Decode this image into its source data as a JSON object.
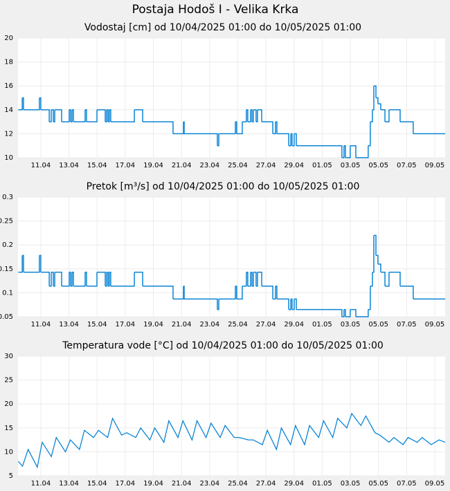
{
  "title": "Postaja Hodoš I - Velika Krka",
  "chart_data": [
    {
      "type": "line",
      "step": true,
      "title": "Vodostaj [cm] od 10/04/2025 01:00 do 10/05/2025 01:00",
      "grid": true,
      "x": [
        99.4,
        99.68,
        99.77,
        100.9,
        101.0,
        101.6,
        101.74,
        101.89,
        101.99,
        102.48,
        103.02,
        103.12,
        103.22,
        103.32,
        104.15,
        104.25,
        104.99,
        105.58,
        105.68,
        105.78,
        105.87,
        105.97,
        107.65,
        108.24,
        110.4,
        111.14,
        111.19,
        113.55,
        113.65,
        114.83,
        114.92,
        115.32,
        115.61,
        115.71,
        115.91,
        116.01,
        116.11,
        116.3,
        116.4,
        116.7,
        117.49,
        117.68,
        117.78,
        118.62,
        118.77,
        118.86,
        119.01,
        119.16,
        119.4,
        122.4,
        122.55,
        122.65,
        122.99,
        123.39,
        124.27,
        124.42,
        124.57,
        124.67,
        124.82,
        124.96,
        125.16,
        125.46,
        125.75,
        126.54,
        127.47,
        129.74
      ],
      "series": [
        {
          "color": "#0a84d6",
          "values": [
            14,
            15,
            14,
            15,
            14,
            13,
            14,
            13,
            14,
            13,
            14,
            13,
            14,
            13,
            14,
            13,
            14,
            13,
            14,
            13,
            14,
            13,
            14,
            13,
            12,
            13,
            12,
            11,
            12,
            13,
            12,
            13,
            14,
            13,
            14,
            13,
            14,
            13,
            14,
            13,
            12,
            13,
            12,
            11,
            12,
            11,
            12,
            11,
            11,
            10,
            11,
            10,
            11,
            10,
            11,
            13,
            14,
            16,
            15,
            14.5,
            14,
            13,
            14,
            13,
            12,
            12
          ]
        }
      ],
      "xlim": [
        99.38,
        129.74
      ],
      "ylim": [
        10,
        20
      ],
      "yticks": [
        10,
        12,
        14,
        16,
        18,
        20
      ],
      "xticks": [
        {
          "value": 101,
          "label": "11.04"
        },
        {
          "value": 103,
          "label": "13.04"
        },
        {
          "value": 105,
          "label": "15.04"
        },
        {
          "value": 107,
          "label": "17.04"
        },
        {
          "value": 109,
          "label": "19.04"
        },
        {
          "value": 111,
          "label": "21.04"
        },
        {
          "value": 113,
          "label": "23.04"
        },
        {
          "value": 115,
          "label": "25.04"
        },
        {
          "value": 117,
          "label": "27.04"
        },
        {
          "value": 119,
          "label": "29.04"
        },
        {
          "value": 121,
          "label": "01.05"
        },
        {
          "value": 123,
          "label": "03.05"
        },
        {
          "value": 125,
          "label": "05.05"
        },
        {
          "value": 127,
          "label": "07.05"
        },
        {
          "value": 129,
          "label": "09.05"
        }
      ]
    },
    {
      "type": "line",
      "step": true,
      "title": "Pretok [m³/s] od 10/04/2025 01:00 do 10/05/2025 01:00",
      "grid": true,
      "x": [
        99.4,
        99.68,
        99.77,
        100.9,
        101.0,
        101.6,
        101.74,
        101.89,
        101.99,
        102.48,
        103.02,
        103.12,
        103.22,
        103.32,
        104.15,
        104.25,
        104.99,
        105.58,
        105.68,
        105.78,
        105.87,
        105.97,
        107.65,
        108.24,
        110.4,
        111.14,
        111.19,
        113.55,
        113.65,
        114.83,
        114.92,
        115.32,
        115.61,
        115.71,
        115.91,
        116.01,
        116.11,
        116.3,
        116.4,
        116.7,
        117.49,
        117.68,
        117.78,
        118.62,
        118.77,
        118.86,
        119.01,
        119.16,
        119.4,
        122.4,
        122.55,
        122.65,
        122.99,
        123.39,
        124.27,
        124.42,
        124.57,
        124.67,
        124.82,
        124.96,
        125.16,
        125.46,
        125.75,
        126.54,
        127.47,
        129.74
      ],
      "series": [
        {
          "color": "#0a84d6",
          "values": [
            0.143,
            0.178,
            0.143,
            0.178,
            0.143,
            0.114,
            0.143,
            0.114,
            0.143,
            0.114,
            0.143,
            0.114,
            0.143,
            0.114,
            0.143,
            0.114,
            0.143,
            0.114,
            0.143,
            0.114,
            0.143,
            0.114,
            0.143,
            0.114,
            0.087,
            0.114,
            0.087,
            0.065,
            0.087,
            0.114,
            0.087,
            0.114,
            0.143,
            0.114,
            0.143,
            0.114,
            0.143,
            0.114,
            0.143,
            0.114,
            0.087,
            0.114,
            0.087,
            0.065,
            0.087,
            0.065,
            0.087,
            0.065,
            0.065,
            0.05,
            0.065,
            0.05,
            0.065,
            0.05,
            0.065,
            0.114,
            0.143,
            0.22,
            0.178,
            0.16,
            0.143,
            0.114,
            0.143,
            0.114,
            0.087,
            0.087
          ]
        }
      ],
      "xlim": [
        99.38,
        129.74
      ],
      "ylim": [
        0.05,
        0.3
      ],
      "yticks": [
        0.05,
        0.1,
        0.15,
        0.2,
        0.25,
        0.3
      ],
      "xticks": [
        {
          "value": 101,
          "label": "11.04"
        },
        {
          "value": 103,
          "label": "13.04"
        },
        {
          "value": 105,
          "label": "15.04"
        },
        {
          "value": 107,
          "label": "17.04"
        },
        {
          "value": 109,
          "label": "19.04"
        },
        {
          "value": 111,
          "label": "21.04"
        },
        {
          "value": 113,
          "label": "23.04"
        },
        {
          "value": 115,
          "label": "25.04"
        },
        {
          "value": 117,
          "label": "27.04"
        },
        {
          "value": 119,
          "label": "29.04"
        },
        {
          "value": 121,
          "label": "01.05"
        },
        {
          "value": 123,
          "label": "03.05"
        },
        {
          "value": 125,
          "label": "05.05"
        },
        {
          "value": 127,
          "label": "07.05"
        },
        {
          "value": 129,
          "label": "09.05"
        }
      ]
    },
    {
      "type": "line",
      "step": false,
      "title": "Temperatura vode [°C] od 10/04/2025 01:00 do 10/05/2025 01:00",
      "grid": true,
      "x": [
        99.4,
        99.7,
        100.1,
        100.75,
        101.1,
        101.75,
        102.1,
        102.75,
        103.1,
        103.75,
        104.1,
        104.75,
        105.1,
        105.75,
        106.1,
        106.75,
        107.1,
        107.75,
        108.1,
        108.75,
        109.1,
        109.75,
        110.1,
        110.75,
        111.1,
        111.75,
        112.1,
        112.75,
        113.1,
        113.75,
        114.1,
        114.75,
        115.1,
        115.75,
        116.1,
        116.75,
        117.1,
        117.75,
        118.1,
        118.75,
        119.1,
        119.75,
        120.1,
        120.75,
        121.1,
        121.75,
        122.1,
        122.75,
        123.1,
        123.75,
        124.1,
        124.75,
        125.1,
        125.75,
        126.1,
        126.75,
        127.1,
        127.75,
        128.1,
        128.75,
        129.3,
        129.74
      ],
      "series": [
        {
          "color": "#0a84d6",
          "values": [
            8,
            7,
            10.5,
            6.8,
            12,
            9,
            13,
            10,
            12.5,
            10.5,
            14.5,
            13,
            14.5,
            13,
            17,
            13.5,
            14,
            13,
            15,
            12.5,
            15,
            12,
            16.5,
            13,
            16.5,
            12.5,
            16.5,
            13,
            16,
            13,
            15.5,
            13,
            13,
            12.5,
            12.5,
            11.5,
            14.5,
            10.5,
            15,
            11.5,
            15.5,
            11.5,
            15.5,
            13,
            16.5,
            13,
            17,
            15,
            18,
            15.5,
            17.5,
            14,
            13.5,
            12,
            13,
            11.5,
            13,
            12,
            13,
            11.5,
            12.5,
            12
          ]
        }
      ],
      "xlim": [
        99.38,
        129.74
      ],
      "ylim": [
        5,
        30
      ],
      "yticks": [
        5,
        10,
        15,
        20,
        25,
        30
      ],
      "xticks": [
        {
          "value": 101,
          "label": "11.04"
        },
        {
          "value": 103,
          "label": "13.04"
        },
        {
          "value": 105,
          "label": "15.04"
        },
        {
          "value": 107,
          "label": "17.04"
        },
        {
          "value": 109,
          "label": "19.04"
        },
        {
          "value": 111,
          "label": "21.04"
        },
        {
          "value": 113,
          "label": "23.04"
        },
        {
          "value": 115,
          "label": "25.04"
        },
        {
          "value": 117,
          "label": "27.04"
        },
        {
          "value": 119,
          "label": "29.04"
        },
        {
          "value": 121,
          "label": "01.05"
        },
        {
          "value": 123,
          "label": "03.05"
        },
        {
          "value": 125,
          "label": "05.05"
        },
        {
          "value": 127,
          "label": "07.05"
        },
        {
          "value": 129,
          "label": "09.05"
        }
      ]
    }
  ]
}
